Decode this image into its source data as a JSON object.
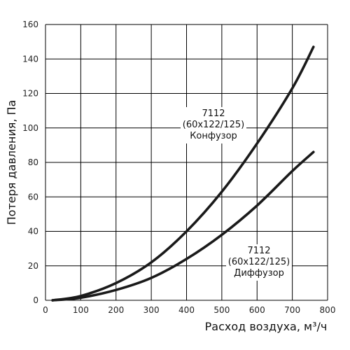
{
  "chart_data": {
    "type": "line",
    "xlabel": "Расход воздуха, м³/ч",
    "ylabel": "Потеря давления, Па",
    "xlim": [
      0,
      800
    ],
    "ylim": [
      0,
      160
    ],
    "xticks": [
      0,
      100,
      200,
      300,
      400,
      500,
      600,
      700,
      800
    ],
    "yticks": [
      0,
      20,
      40,
      60,
      80,
      100,
      120,
      140,
      160
    ],
    "grid": true,
    "series": [
      {
        "name": "7112 (60x122/125) Конфузор",
        "x": [
          20,
          100,
          200,
          300,
          400,
          500,
          600,
          700,
          760
        ],
        "y": [
          0,
          2.5,
          10,
          22,
          40,
          63,
          91,
          123,
          147
        ]
      },
      {
        "name": "7112 (60x122/125) Диффузор",
        "x": [
          20,
          100,
          200,
          300,
          400,
          500,
          600,
          700,
          760
        ],
        "y": [
          0,
          1.5,
          6,
          13,
          24,
          38,
          55,
          75,
          86
        ]
      }
    ],
    "annotations": [
      {
        "lines": [
          "7112",
          "(60x122/125)",
          "Конфузор"
        ],
        "series": 0
      },
      {
        "lines": [
          "7112",
          "(60x122/125)",
          "Диффузор"
        ],
        "series": 1
      }
    ]
  }
}
